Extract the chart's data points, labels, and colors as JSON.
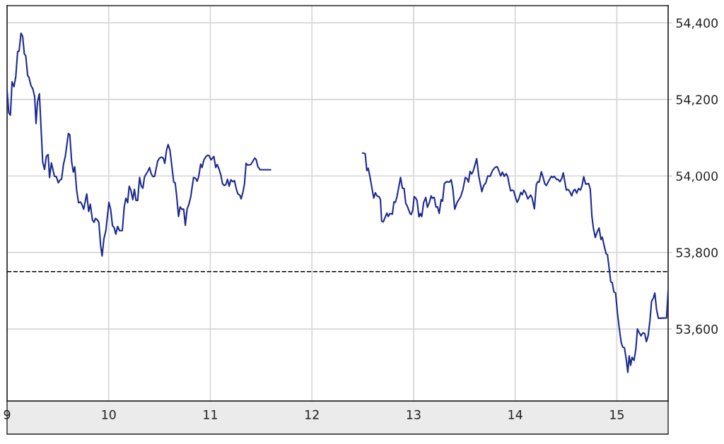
{
  "chart_data": {
    "type": "line",
    "xlim": [
      9,
      15.505
    ],
    "xticks": [
      9,
      10,
      11,
      12,
      13,
      14,
      15
    ],
    "ylim": [
      53412,
      54445
    ],
    "yticks": [
      {
        "value": 53600,
        "label": "53,600"
      },
      {
        "value": 53800,
        "label": "53,800"
      },
      {
        "value": 54000,
        "label": "54,000"
      },
      {
        "value": 54200,
        "label": "54,200"
      },
      {
        "value": 54400,
        "label": "54,400"
      }
    ],
    "grid": true,
    "marker": "none",
    "line_style": "solid",
    "ref_lines": [
      {
        "axis": "y",
        "value": 53750,
        "color": "#000000",
        "line_style": "dashed"
      }
    ],
    "series": [
      {
        "color": "#1b2a8f",
        "x": [
          9.0,
          9.017,
          9.033,
          9.049,
          9.068,
          9.086,
          9.104,
          9.118,
          9.137,
          9.153,
          9.17,
          9.184,
          9.202,
          9.216,
          9.235,
          9.253,
          9.271,
          9.285,
          9.299,
          9.318,
          9.351,
          9.369,
          9.386,
          9.404,
          9.418,
          9.436,
          9.466,
          9.485,
          9.504,
          9.522,
          9.536,
          9.555,
          9.573,
          9.603,
          9.617,
          9.636,
          9.652,
          9.666,
          9.685,
          9.703,
          9.722,
          9.736,
          9.754,
          9.784,
          9.803,
          9.819,
          9.84,
          9.856,
          9.87,
          9.889,
          9.903,
          9.921,
          9.935,
          9.953,
          9.972,
          10.002,
          10.019,
          10.037,
          10.054,
          10.07,
          10.088,
          10.107,
          10.134,
          10.153,
          10.169,
          10.186,
          10.202,
          10.218,
          10.237,
          10.253,
          10.269,
          10.285,
          10.304,
          10.32,
          10.336,
          10.353,
          10.385,
          10.402,
          10.418,
          10.436,
          10.452,
          10.482,
          10.501,
          10.52,
          10.536,
          10.552,
          10.569,
          10.585,
          10.603,
          10.64,
          10.654,
          10.668,
          10.687,
          10.703,
          10.719,
          10.738,
          10.754,
          10.772,
          10.788,
          10.807,
          10.835,
          10.854,
          10.87,
          10.886,
          10.905,
          10.919,
          10.937,
          10.958,
          10.974,
          10.988,
          11.007,
          11.035,
          11.053,
          11.067,
          11.086,
          11.103,
          11.12,
          11.136,
          11.152,
          11.169,
          11.185,
          11.202,
          11.22,
          11.237,
          11.255,
          11.271,
          11.29,
          11.303,
          11.322,
          11.336,
          11.352,
          11.369,
          11.399,
          11.415,
          11.438,
          11.452,
          11.468,
          11.491,
          11.592,
          12.0,
          12.5,
          12.524,
          12.54,
          12.554,
          12.57,
          12.608,
          12.624,
          12.64,
          12.663,
          12.674,
          12.686,
          12.702,
          12.737,
          12.751,
          12.768,
          12.791,
          12.807,
          12.821,
          12.837,
          12.872,
          12.89,
          12.907,
          12.923,
          12.937,
          12.965,
          12.976,
          12.992,
          13.006,
          13.022,
          13.034,
          13.053,
          13.067,
          13.081,
          13.099,
          13.12,
          13.136,
          13.155,
          13.173,
          13.185,
          13.203,
          13.22,
          13.236,
          13.252,
          13.271,
          13.285,
          13.303,
          13.324,
          13.354,
          13.37,
          13.387,
          13.405,
          13.429,
          13.464,
          13.486,
          13.509,
          13.526,
          13.54,
          13.556,
          13.572,
          13.586,
          13.621,
          13.642,
          13.672,
          13.69,
          13.711,
          13.73,
          13.753,
          13.777,
          13.8,
          13.823,
          13.841,
          13.857,
          13.874,
          13.892,
          13.911,
          13.927,
          13.939,
          13.955,
          13.969,
          13.985,
          14.004,
          14.02,
          14.036,
          14.055,
          14.069,
          14.085,
          14.101,
          14.125,
          14.152,
          14.166,
          14.189,
          14.208,
          14.222,
          14.236,
          14.257,
          14.275,
          14.292,
          14.306,
          14.324,
          14.338,
          14.356,
          14.37,
          14.384,
          14.407,
          14.421,
          14.44,
          14.459,
          14.473,
          14.487,
          14.503,
          14.519,
          14.537,
          14.556,
          14.572,
          14.588,
          14.605,
          14.623,
          14.642,
          14.658,
          14.674,
          14.693,
          14.709,
          14.723,
          14.739,
          14.755,
          14.769,
          14.788,
          14.807,
          14.825,
          14.844,
          14.857,
          14.876,
          14.894,
          14.908,
          14.927,
          14.941,
          14.955,
          14.971,
          14.988,
          15.006,
          15.024,
          15.043,
          15.057,
          15.075,
          15.092,
          15.108,
          15.122,
          15.136,
          15.15,
          15.169,
          15.187,
          15.203,
          15.219,
          15.238,
          15.256,
          15.275,
          15.291,
          15.308,
          15.326,
          15.342,
          15.358,
          15.374,
          15.391,
          15.409,
          15.489,
          15.505
        ],
        "values": [
          54224,
          54165,
          54159,
          54246,
          54233,
          54260,
          54325,
          54326,
          54373,
          54365,
          54319,
          54314,
          54263,
          54257,
          54236,
          54228,
          54208,
          54137,
          54193,
          54215,
          54036,
          54017,
          54051,
          54056,
          53996,
          54034,
          53999,
          53998,
          53982,
          53990,
          53991,
          54030,
          54051,
          54111,
          54108,
          54036,
          54010,
          54024,
          53962,
          53930,
          53932,
          53926,
          53913,
          53953,
          53907,
          53926,
          53885,
          53879,
          53889,
          53885,
          53879,
          53817,
          53791,
          53836,
          53857,
          53931,
          53913,
          53870,
          53865,
          53848,
          53868,
          53857,
          53857,
          53919,
          53942,
          53930,
          53973,
          53963,
          53938,
          53965,
          53936,
          53936,
          53996,
          53974,
          53968,
          53998,
          54012,
          54022,
          54006,
          53998,
          53999,
          54039,
          54047,
          54049,
          54047,
          54033,
          54067,
          54082,
          54067,
          53984,
          53982,
          53950,
          53894,
          53919,
          53913,
          53913,
          53871,
          53914,
          53925,
          53945,
          53996,
          53994,
          53986,
          53999,
          54031,
          54022,
          54042,
          54051,
          54054,
          54053,
          54042,
          54051,
          54022,
          54030,
          54018,
          54003,
          53980,
          53975,
          53977,
          53991,
          53973,
          53990,
          53985,
          53988,
          53967,
          53953,
          53950,
          53940,
          53959,
          53979,
          54033,
          54028,
          54030,
          54037,
          54047,
          54042,
          54024,
          54016,
          54016,
          null,
          54060,
          54058,
          54014,
          54020,
          53999,
          53942,
          53956,
          53948,
          53945,
          53938,
          53882,
          53880,
          53903,
          53894,
          53902,
          53900,
          53932,
          53931,
          53946,
          53996,
          53968,
          53967,
          53928,
          53922,
          53902,
          53899,
          53910,
          53946,
          53942,
          53936,
          53893,
          53902,
          53894,
          53930,
          53944,
          53918,
          53930,
          53948,
          53942,
          53944,
          53919,
          53919,
          53902,
          53938,
          53934,
          53980,
          53985,
          53984,
          53990,
          53965,
          53913,
          53931,
          53946,
          53965,
          53996,
          53993,
          53984,
          54012,
          54005,
          54012,
          54045,
          53999,
          53959,
          53975,
          53982,
          54000,
          53999,
          54014,
          54022,
          54024,
          54012,
          54000,
          54010,
          53999,
          54006,
          53998,
          53980,
          53961,
          53963,
          53961,
          53943,
          53931,
          53940,
          53957,
          53951,
          53963,
          53957,
          53940,
          53950,
          53943,
          53914,
          53977,
          53985,
          53984,
          54011,
          53996,
          53979,
          53975,
          53984,
          53991,
          53999,
          53996,
          53999,
          53991,
          53991,
          53985,
          53994,
          54008,
          53987,
          53963,
          53965,
          53959,
          53948,
          53961,
          53965,
          53955,
          53967,
          53963,
          53975,
          53998,
          53979,
          53979,
          53980,
          53965,
          53894,
          53864,
          53839,
          53854,
          53864,
          53834,
          53840,
          53817,
          53797,
          53794,
          53753,
          53723,
          53721,
          53697,
          53694,
          53642,
          53602,
          53565,
          53553,
          53551,
          53522,
          53487,
          53530,
          53505,
          53526,
          53518,
          53547,
          53600,
          53591,
          53582,
          53590,
          53588,
          53567,
          53582,
          53622,
          53673,
          53680,
          53694,
          53651,
          53628,
          53629,
          53700
        ]
      }
    ]
  }
}
